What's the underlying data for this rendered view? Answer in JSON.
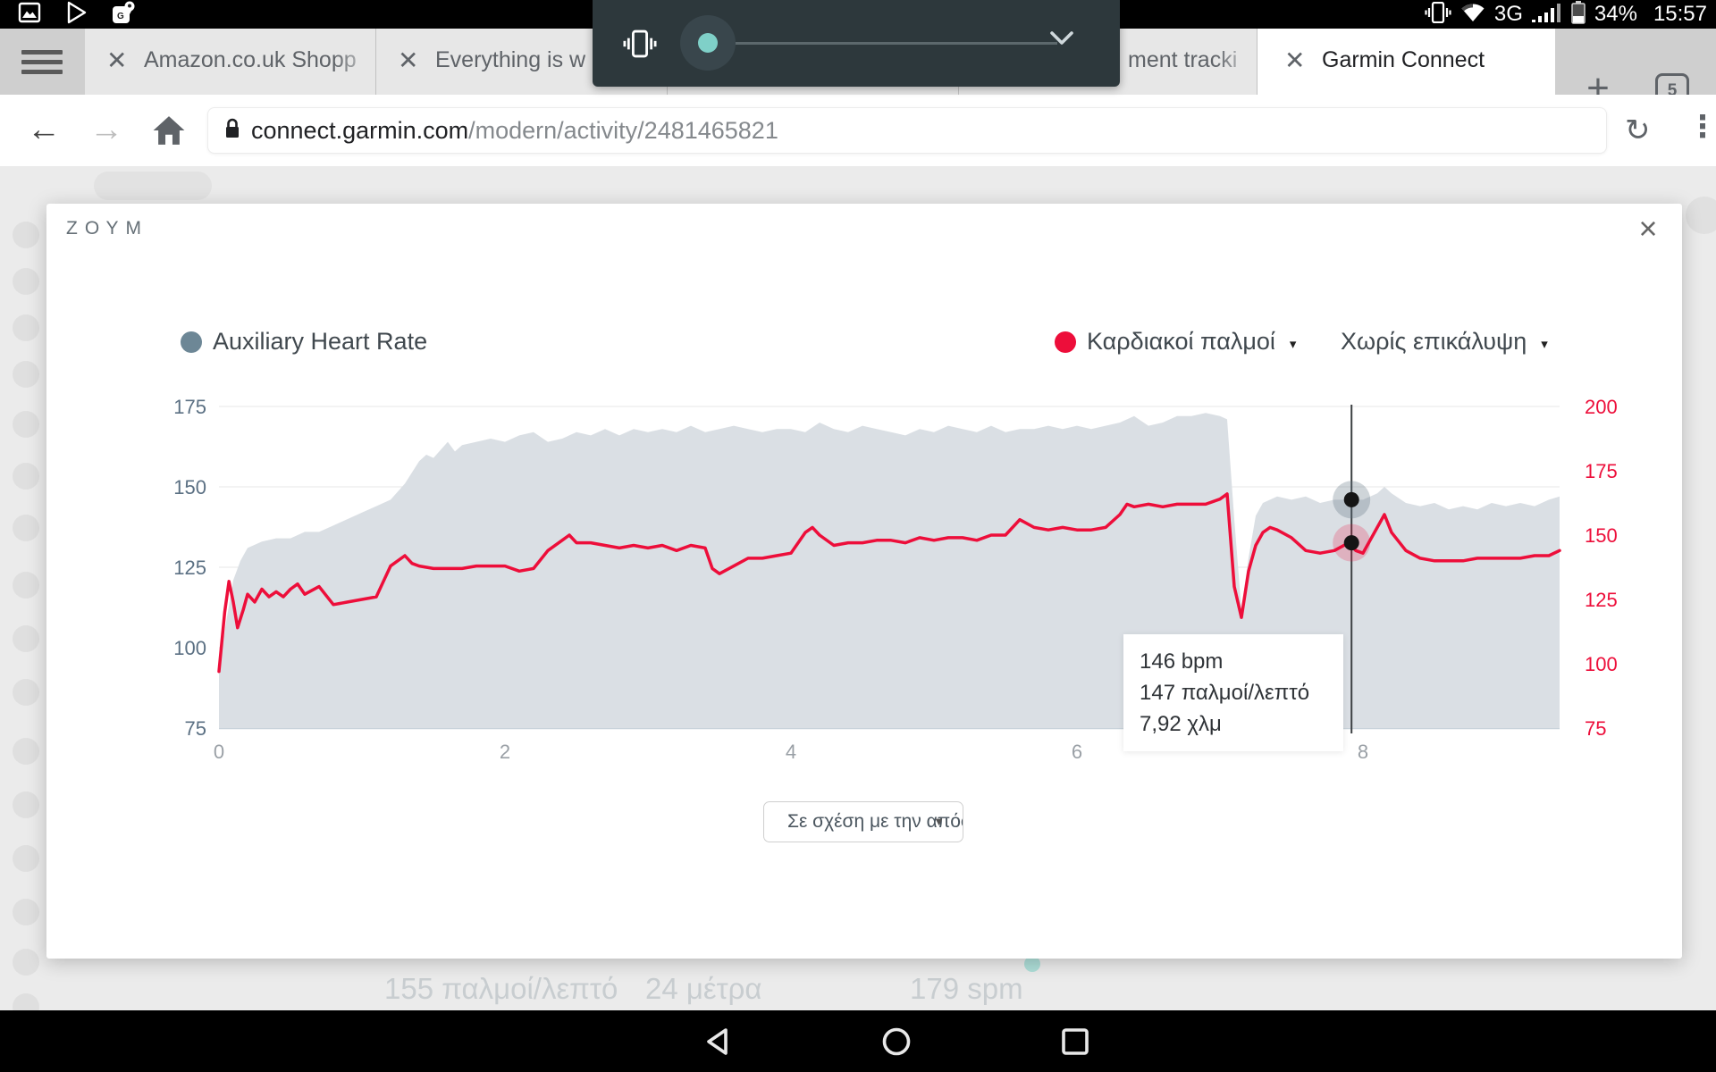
{
  "colors": {
    "heart_rate_red": "#ed0e3a",
    "aux_series": "#6d8796",
    "aux_fill": "#dadfe4",
    "slider_thumb": "#7fd0c8"
  },
  "status_bar": {
    "left_icons": [
      "screenshot-icon",
      "play-store-icon",
      "maps-icon"
    ],
    "network_label": "3G",
    "battery_label": "34%",
    "time": "15:57"
  },
  "volume_overlay": {
    "slider_value": 0.07
  },
  "browser": {
    "tabs": [
      {
        "title": "Amazon.co.uk Shopp",
        "active": false
      },
      {
        "title": "Everything is w",
        "active": false
      },
      {
        "title": "",
        "active": false
      },
      {
        "title": "ment tracki",
        "active": false
      },
      {
        "title": "Garmin Connect",
        "active": true
      }
    ],
    "new_tab_label": "+",
    "tab_count": "5",
    "url": {
      "domain": "connect.garmin.com",
      "path": "/modern/activity/2481465821"
    }
  },
  "modal": {
    "title": "ΖΟΥΜ",
    "close_label": "×"
  },
  "legend": {
    "aux": {
      "label": "Auxiliary Heart Rate",
      "color": "#6d8796"
    },
    "hr": {
      "label": "Καρδιακοί παλμοί",
      "caret": "▾",
      "color": "#ed0e3a"
    },
    "overlay": {
      "label": "Χωρίς επικάλυψη",
      "caret": "▾"
    }
  },
  "tooltip": {
    "line1": "146 bpm",
    "line2": "147 παλμοί/λεπτό",
    "line3": "7,92 χλμ"
  },
  "axis_dropdown": {
    "value": "Σε σχέση με την απόσ",
    "caret": "▼"
  },
  "page_background": {
    "stats": [
      "155 παλμοί/λεπτό",
      "24 μέτρα",
      "179 spm"
    ]
  },
  "nav_bar": {
    "icons": [
      "back",
      "home",
      "recents"
    ]
  },
  "chart_data": {
    "type": "line",
    "title": "ΖΟΥΜ (heart-rate zoom view)",
    "x_unit": "km",
    "xlim": [
      0,
      9.375
    ],
    "x_ticks": [
      0,
      2,
      4,
      6,
      8
    ],
    "x_tick_color": "#9aa0a6",
    "grid": true,
    "left_axis": {
      "lim": [
        75,
        175
      ],
      "ticks": [
        75,
        100,
        125,
        150,
        175
      ],
      "color": "#5b7083",
      "series": "Auxiliary Heart Rate"
    },
    "right_axis": {
      "lim": [
        75,
        200
      ],
      "ticks": [
        75,
        100,
        125,
        150,
        175,
        200
      ],
      "color": "#ed0e3a",
      "series": "Καρδιακοί παλμοί"
    },
    "cursor": {
      "x_km": 7.92,
      "aux_value": 146,
      "hr_value": 147
    },
    "series": [
      {
        "name": "Auxiliary Heart Rate",
        "axis": "left",
        "style": "area",
        "fill": "#dadfe4",
        "points": [
          [
            0,
            93
          ],
          [
            0.05,
            108
          ],
          [
            0.1,
            121
          ],
          [
            0.15,
            127
          ],
          [
            0.2,
            131
          ],
          [
            0.3,
            133
          ],
          [
            0.4,
            134
          ],
          [
            0.5,
            134
          ],
          [
            0.6,
            136
          ],
          [
            0.7,
            136
          ],
          [
            0.8,
            138
          ],
          [
            0.9,
            140
          ],
          [
            1.0,
            142
          ],
          [
            1.1,
            144
          ],
          [
            1.2,
            146
          ],
          [
            1.3,
            151
          ],
          [
            1.4,
            158
          ],
          [
            1.45,
            160
          ],
          [
            1.5,
            159
          ],
          [
            1.6,
            164
          ],
          [
            1.65,
            161
          ],
          [
            1.7,
            163
          ],
          [
            1.8,
            164
          ],
          [
            1.9,
            165
          ],
          [
            2.0,
            164
          ],
          [
            2.1,
            166
          ],
          [
            2.2,
            167
          ],
          [
            2.3,
            164
          ],
          [
            2.4,
            165
          ],
          [
            2.5,
            167
          ],
          [
            2.6,
            166
          ],
          [
            2.7,
            168
          ],
          [
            2.8,
            166
          ],
          [
            2.9,
            168
          ],
          [
            3.0,
            167
          ],
          [
            3.1,
            168
          ],
          [
            3.2,
            167
          ],
          [
            3.3,
            169
          ],
          [
            3.4,
            167
          ],
          [
            3.5,
            168
          ],
          [
            3.6,
            169
          ],
          [
            3.7,
            168
          ],
          [
            3.8,
            167
          ],
          [
            3.9,
            168
          ],
          [
            4.0,
            168
          ],
          [
            4.1,
            167
          ],
          [
            4.2,
            170
          ],
          [
            4.3,
            168
          ],
          [
            4.4,
            167
          ],
          [
            4.5,
            169
          ],
          [
            4.6,
            168
          ],
          [
            4.7,
            167
          ],
          [
            4.8,
            166
          ],
          [
            4.9,
            168
          ],
          [
            5.0,
            167
          ],
          [
            5.1,
            169
          ],
          [
            5.2,
            168
          ],
          [
            5.3,
            167
          ],
          [
            5.4,
            169
          ],
          [
            5.5,
            167
          ],
          [
            5.6,
            168
          ],
          [
            5.7,
            168
          ],
          [
            5.8,
            169
          ],
          [
            5.9,
            168
          ],
          [
            6.0,
            169
          ],
          [
            6.1,
            168
          ],
          [
            6.2,
            169
          ],
          [
            6.3,
            170
          ],
          [
            6.4,
            172
          ],
          [
            6.5,
            169
          ],
          [
            6.6,
            170
          ],
          [
            6.7,
            172
          ],
          [
            6.8,
            172
          ],
          [
            6.9,
            173
          ],
          [
            7.0,
            172
          ],
          [
            7.05,
            171
          ],
          [
            7.1,
            140
          ],
          [
            7.15,
            112
          ],
          [
            7.2,
            128
          ],
          [
            7.25,
            141
          ],
          [
            7.3,
            145
          ],
          [
            7.4,
            147
          ],
          [
            7.5,
            146
          ],
          [
            7.6,
            147
          ],
          [
            7.7,
            145
          ],
          [
            7.8,
            146
          ],
          [
            7.92,
            146
          ],
          [
            8.0,
            146
          ],
          [
            8.1,
            148
          ],
          [
            8.15,
            150
          ],
          [
            8.2,
            148
          ],
          [
            8.3,
            145
          ],
          [
            8.4,
            144
          ],
          [
            8.5,
            145
          ],
          [
            8.6,
            143
          ],
          [
            8.7,
            144
          ],
          [
            8.8,
            143
          ],
          [
            8.9,
            145
          ],
          [
            9.0,
            144
          ],
          [
            9.1,
            145
          ],
          [
            9.2,
            144
          ],
          [
            9.3,
            146
          ],
          [
            9.375,
            147
          ]
        ]
      },
      {
        "name": "Καρδιακοί παλμοί",
        "axis": "right",
        "style": "line",
        "stroke": "#ed0e3a",
        "width": 3.5,
        "points": [
          [
            0,
            97
          ],
          [
            0.04,
            120
          ],
          [
            0.07,
            132
          ],
          [
            0.1,
            124
          ],
          [
            0.13,
            114
          ],
          [
            0.17,
            121
          ],
          [
            0.2,
            127
          ],
          [
            0.25,
            124
          ],
          [
            0.3,
            129
          ],
          [
            0.35,
            126
          ],
          [
            0.4,
            128
          ],
          [
            0.45,
            126
          ],
          [
            0.5,
            129
          ],
          [
            0.55,
            131
          ],
          [
            0.6,
            127
          ],
          [
            0.7,
            130
          ],
          [
            0.8,
            123
          ],
          [
            0.9,
            124
          ],
          [
            1.0,
            125
          ],
          [
            1.1,
            126
          ],
          [
            1.15,
            132
          ],
          [
            1.2,
            138
          ],
          [
            1.3,
            142
          ],
          [
            1.35,
            139
          ],
          [
            1.4,
            138
          ],
          [
            1.5,
            137
          ],
          [
            1.6,
            137
          ],
          [
            1.7,
            137
          ],
          [
            1.8,
            138
          ],
          [
            1.9,
            138
          ],
          [
            2.0,
            138
          ],
          [
            2.1,
            136
          ],
          [
            2.2,
            137
          ],
          [
            2.3,
            144
          ],
          [
            2.4,
            148
          ],
          [
            2.45,
            150
          ],
          [
            2.5,
            147
          ],
          [
            2.6,
            147
          ],
          [
            2.7,
            146
          ],
          [
            2.8,
            145
          ],
          [
            2.9,
            146
          ],
          [
            3.0,
            145
          ],
          [
            3.1,
            146
          ],
          [
            3.2,
            144
          ],
          [
            3.3,
            146
          ],
          [
            3.4,
            145
          ],
          [
            3.45,
            137
          ],
          [
            3.5,
            135
          ],
          [
            3.6,
            138
          ],
          [
            3.7,
            141
          ],
          [
            3.8,
            141
          ],
          [
            3.9,
            142
          ],
          [
            4.0,
            143
          ],
          [
            4.1,
            151
          ],
          [
            4.15,
            153
          ],
          [
            4.2,
            150
          ],
          [
            4.3,
            146
          ],
          [
            4.4,
            147
          ],
          [
            4.5,
            147
          ],
          [
            4.6,
            148
          ],
          [
            4.7,
            148
          ],
          [
            4.8,
            147
          ],
          [
            4.9,
            149
          ],
          [
            5.0,
            148
          ],
          [
            5.1,
            149
          ],
          [
            5.2,
            149
          ],
          [
            5.3,
            148
          ],
          [
            5.4,
            150
          ],
          [
            5.5,
            150
          ],
          [
            5.6,
            156
          ],
          [
            5.7,
            153
          ],
          [
            5.8,
            152
          ],
          [
            5.9,
            153
          ],
          [
            6.0,
            152
          ],
          [
            6.1,
            152
          ],
          [
            6.2,
            153
          ],
          [
            6.3,
            158
          ],
          [
            6.35,
            162
          ],
          [
            6.4,
            161
          ],
          [
            6.5,
            162
          ],
          [
            6.6,
            161
          ],
          [
            6.7,
            162
          ],
          [
            6.8,
            162
          ],
          [
            6.9,
            162
          ],
          [
            7.0,
            164
          ],
          [
            7.05,
            166
          ],
          [
            7.1,
            130
          ],
          [
            7.15,
            118
          ],
          [
            7.2,
            136
          ],
          [
            7.25,
            146
          ],
          [
            7.3,
            151
          ],
          [
            7.35,
            153
          ],
          [
            7.4,
            152
          ],
          [
            7.5,
            149
          ],
          [
            7.6,
            144
          ],
          [
            7.7,
            143
          ],
          [
            7.8,
            144
          ],
          [
            7.9,
            147
          ],
          [
            7.95,
            144
          ],
          [
            8.0,
            143
          ],
          [
            8.1,
            153
          ],
          [
            8.15,
            158
          ],
          [
            8.2,
            151
          ],
          [
            8.3,
            144
          ],
          [
            8.4,
            141
          ],
          [
            8.5,
            140
          ],
          [
            8.6,
            140
          ],
          [
            8.7,
            140
          ],
          [
            8.8,
            141
          ],
          [
            8.9,
            141
          ],
          [
            9.0,
            141
          ],
          [
            9.1,
            141
          ],
          [
            9.2,
            142
          ],
          [
            9.3,
            142
          ],
          [
            9.375,
            144
          ]
        ]
      }
    ]
  }
}
